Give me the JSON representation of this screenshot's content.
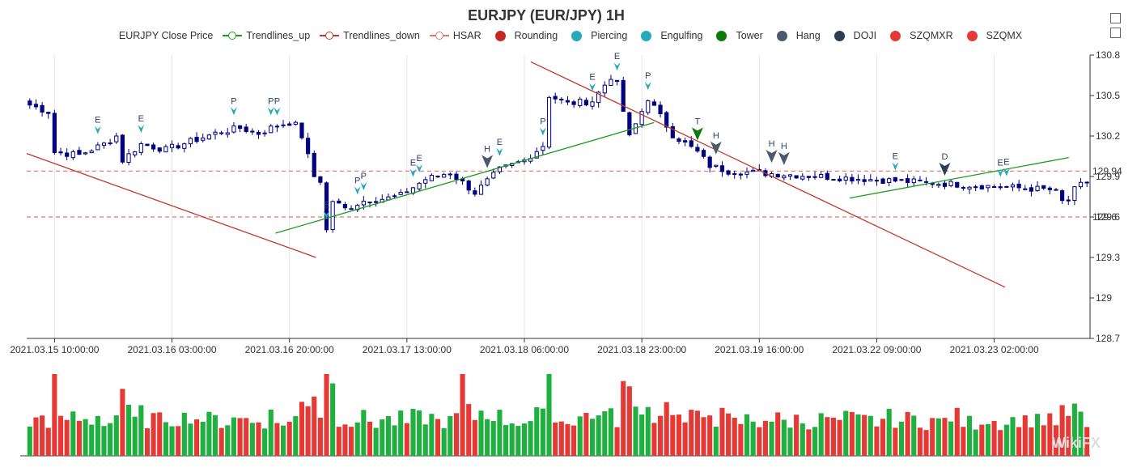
{
  "title": "EURJPY (EUR/JPY) 1H",
  "toolbox": [
    {
      "name": "zoom-icon"
    },
    {
      "name": "restore-icon"
    }
  ],
  "legend": [
    {
      "label": "EURJPY Close Price",
      "kind": "none",
      "color": "#000080"
    },
    {
      "label": "Trendlines_up",
      "kind": "ring",
      "color": "#1a9c1a"
    },
    {
      "label": "Trendlines_down",
      "kind": "ring",
      "color": "#c0392b"
    },
    {
      "label": "HSAR",
      "kind": "ring",
      "color": "#e57373"
    },
    {
      "label": "Rounding",
      "kind": "dot",
      "color": "#c62828"
    },
    {
      "label": "Piercing",
      "kind": "dot",
      "color": "#26a9b8"
    },
    {
      "label": "Engulfing",
      "kind": "dot",
      "color": "#26a9b8"
    },
    {
      "label": "Tower",
      "kind": "dot",
      "color": "#0a7a0a"
    },
    {
      "label": "Hang",
      "kind": "dot",
      "color": "#4a5a6a"
    },
    {
      "label": "DOJI",
      "kind": "dot",
      "color": "#2c3e50"
    },
    {
      "label": "SZQMXR",
      "kind": "dot",
      "color": "#e53935"
    },
    {
      "label": "SZQMX",
      "kind": "dot",
      "color": "#e53935"
    }
  ],
  "watermark": "WikiFX",
  "chart_data": {
    "type": "candlestick",
    "title": "EURJPY (EUR/JPY) 1H",
    "x_ticks": [
      "2021.03.15 10:00:00",
      "2021.03.16 03:00:00",
      "2021.03.16 20:00:00",
      "2021.03.17 13:00:00",
      "2021.03.18 06:00:00",
      "2021.03.18 23:00:00",
      "2021.03.19 16:00:00",
      "2021.03.22 09:00:00",
      "2021.03.23 02:00:00"
    ],
    "y_ticks": [
      128.7,
      129,
      129.3,
      129.6,
      129.9,
      130.2,
      130.5,
      130.8
    ],
    "ylim": [
      128.7,
      130.8
    ],
    "grid": {
      "vertical": true,
      "horizontal": false
    },
    "bar_count": 128,
    "close_anchors": [
      [
        0,
        130.43
      ],
      [
        3,
        130.38
      ],
      [
        4,
        130.08
      ],
      [
        8,
        130.06
      ],
      [
        12,
        130.14
      ],
      [
        14,
        130.2
      ],
      [
        15,
        130.02
      ],
      [
        18,
        130.14
      ],
      [
        22,
        130.1
      ],
      [
        26,
        130.16
      ],
      [
        30,
        130.22
      ],
      [
        34,
        130.26
      ],
      [
        37,
        130.22
      ],
      [
        40,
        130.28
      ],
      [
        42,
        130.3
      ],
      [
        43,
        130.28
      ],
      [
        44,
        130.2
      ],
      [
        46,
        129.9
      ],
      [
        47,
        129.87
      ],
      [
        48,
        129.5
      ],
      [
        49,
        129.72
      ],
      [
        51,
        129.66
      ],
      [
        54,
        129.72
      ],
      [
        58,
        129.74
      ],
      [
        60,
        129.76
      ],
      [
        64,
        129.88
      ],
      [
        68,
        129.93
      ],
      [
        72,
        129.78
      ],
      [
        76,
        129.95
      ],
      [
        80,
        130.02
      ],
      [
        83,
        130.13
      ],
      [
        84,
        130.5
      ],
      [
        87,
        130.44
      ],
      [
        91,
        130.46
      ],
      [
        94,
        130.64
      ],
      [
        95,
        130.58
      ],
      [
        97,
        130.19
      ],
      [
        100,
        130.48
      ],
      [
        104,
        130.21
      ],
      [
        108,
        130.08
      ],
      [
        110,
        129.98
      ],
      [
        113,
        129.94
      ]
    ],
    "close_anchors_tail": [
      [
        0,
        129.94
      ],
      [
        2,
        129.8
      ],
      [
        4,
        129.68
      ],
      [
        6,
        129.82
      ],
      [
        9,
        129.88
      ],
      [
        11,
        129.9
      ],
      [
        13,
        129.75
      ],
      [
        16,
        129.78
      ],
      [
        18,
        129.55
      ],
      [
        21,
        129.5
      ],
      [
        24,
        129.6
      ],
      [
        26,
        129.65
      ],
      [
        29,
        129.63
      ],
      [
        32,
        129.05
      ],
      [
        33,
        129.35
      ],
      [
        36,
        129.42
      ],
      [
        40,
        129.36
      ],
      [
        43,
        129.22
      ],
      [
        46,
        129.45
      ],
      [
        48,
        129.7
      ],
      [
        51,
        129.72
      ],
      [
        54,
        129.9
      ],
      [
        57,
        129.9
      ],
      [
        60,
        129.8
      ],
      [
        63,
        129.63
      ],
      [
        66,
        129.64
      ]
    ],
    "y_markers": [
      {
        "value": 129.94,
        "label": "129.94",
        "color": "#e57373",
        "style": "dashed"
      },
      {
        "value": 129.6,
        "label": "129.6",
        "color": "#e57373",
        "style": "dashed"
      }
    ],
    "trendlines_down": [
      {
        "from": [
          0.0,
          130.07
        ],
        "to": [
          13.6,
          129.3
        ]
      },
      {
        "from": [
          23.7,
          130.75
        ],
        "to": [
          46.0,
          129.08
        ]
      }
    ],
    "trendlines_up": [
      {
        "from": [
          11.7,
          129.48
        ],
        "to": [
          29.5,
          130.3
        ]
      },
      {
        "from": [
          38.7,
          129.74
        ],
        "to": [
          49.0,
          130.04
        ]
      }
    ],
    "pattern_markers": [
      {
        "i": 11,
        "label": "E",
        "kind": "Engulfing"
      },
      {
        "i": 18,
        "label": "E",
        "kind": "Engulfing"
      },
      {
        "i": 33,
        "label": "P",
        "kind": "Piercing"
      },
      {
        "i": 39,
        "label": "P",
        "kind": "Piercing"
      },
      {
        "i": 40,
        "label": "P",
        "kind": "Piercing"
      },
      {
        "i": 48,
        "label": "E",
        "kind": "Engulfing"
      },
      {
        "i": 53,
        "label": "P",
        "kind": "Piercing"
      },
      {
        "i": 54,
        "label": "P",
        "kind": "Piercing"
      },
      {
        "i": 62,
        "label": "E",
        "kind": "Engulfing"
      },
      {
        "i": 63,
        "label": "E",
        "kind": "Engulfing"
      },
      {
        "i": 74,
        "label": "H",
        "kind": "Hang"
      },
      {
        "i": 76,
        "label": "E",
        "kind": "Engulfing"
      },
      {
        "i": 83,
        "label": "P",
        "kind": "Piercing"
      },
      {
        "i": 91,
        "label": "E",
        "kind": "Engulfing"
      },
      {
        "i": 95,
        "label": "E",
        "kind": "Engulfing"
      },
      {
        "i": 100,
        "label": "P",
        "kind": "Piercing"
      },
      {
        "i": 108,
        "label": "T",
        "kind": "Tower"
      },
      {
        "i": 111,
        "label": "H",
        "kind": "Hang"
      },
      {
        "i": 120,
        "label": "H",
        "kind": "Hang"
      },
      {
        "i": 122,
        "label": "H",
        "kind": "Hang"
      },
      {
        "i": 140,
        "label": "E",
        "kind": "Engulfing"
      },
      {
        "i": 148,
        "label": "D",
        "kind": "DOJI"
      },
      {
        "i": 157,
        "label": "E",
        "kind": "Engulfing"
      },
      {
        "i": 158,
        "label": "E",
        "kind": "Engulfing"
      }
    ],
    "volume": {
      "up_color": "#20b040",
      "down_color": "#e53935",
      "note_peak_index": 70
    }
  }
}
